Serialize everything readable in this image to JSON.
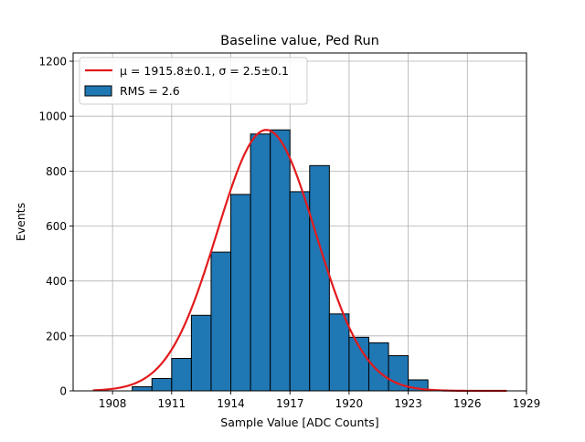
{
  "chart_data": {
    "type": "bar",
    "title": "Baseline value, Ped Run",
    "xlabel": "Sample Value [ADC Counts]",
    "ylabel": "Events",
    "xlim": [
      1906.0,
      1929.0
    ],
    "ylim": [
      0,
      1230
    ],
    "xticks": [
      1908,
      1911,
      1914,
      1917,
      1920,
      1923,
      1926,
      1929
    ],
    "yticks": [
      0,
      200,
      400,
      600,
      800,
      1000,
      1200
    ],
    "grid": true,
    "legend_position": "top-left",
    "bar_color": "#1f77b4",
    "bar_edge_color": "#000000",
    "bins": [
      {
        "x0": 1908,
        "x1": 1909,
        "value": 0
      },
      {
        "x0": 1909,
        "x1": 1910,
        "value": 15
      },
      {
        "x0": 1910,
        "x1": 1911,
        "value": 45
      },
      {
        "x0": 1911,
        "x1": 1912,
        "value": 118
      },
      {
        "x0": 1912,
        "x1": 1913,
        "value": 275
      },
      {
        "x0": 1913,
        "x1": 1914,
        "value": 505
      },
      {
        "x0": 1914,
        "x1": 1915,
        "value": 715
      },
      {
        "x0": 1915,
        "x1": 1916,
        "value": 935
      },
      {
        "x0": 1916,
        "x1": 1917,
        "value": 950
      },
      {
        "x0": 1917,
        "x1": 1918,
        "value": 725
      },
      {
        "x0": 1918,
        "x1": 1919,
        "value": 820
      },
      {
        "x0": 1919,
        "x1": 1920,
        "value": 280
      },
      {
        "x0": 1920,
        "x1": 1921,
        "value": 195
      },
      {
        "x0": 1921,
        "x1": 1922,
        "value": 175
      },
      {
        "x0": 1922,
        "x1": 1923,
        "value": 128
      },
      {
        "x0": 1923,
        "x1": 1924,
        "value": 40
      }
    ],
    "fit": {
      "color": "#e31a1c",
      "mu": 1915.8,
      "sigma": 2.5,
      "amplitude": 950,
      "x_range": [
        1907,
        1928
      ]
    },
    "legend": {
      "fit_label": "μ = 1915.8±0.1, σ = 2.5±0.1",
      "hist_label": "RMS = 2.6"
    }
  }
}
